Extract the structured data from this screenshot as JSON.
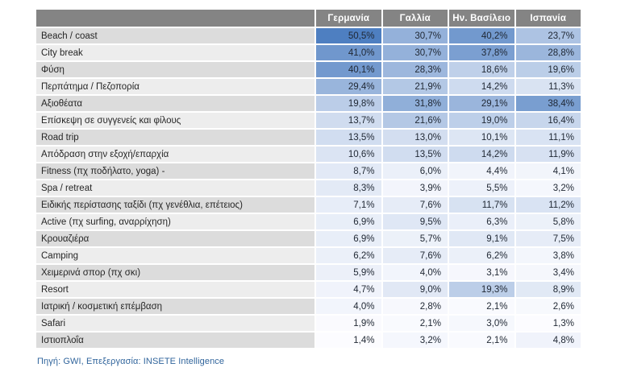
{
  "colors": {
    "header_bg": "#848484",
    "header_text": "#FFFFFF",
    "row_label_bg_dark": "#DCDCDC",
    "row_label_bg_light": "#EDEDED",
    "grid_line": "#FFFFFF",
    "label_text": "#262626",
    "value_text": "#1F2733",
    "source_text": "#31659C",
    "heat_min_color": "#FCFCFF",
    "heat_max_color": "#4E7FC1"
  },
  "chart_data": {
    "type": "table",
    "title": "",
    "corner_label": "",
    "columns": [
      "Γερμανία",
      "Γαλλία",
      "Ην. Βασίλειο",
      "Ισπανία"
    ],
    "value_suffix": "%",
    "decimal_separator": ",",
    "legend_note": "cell shading = blue heatmap scaled to value (min 1,3% white, max 50,5% blue)",
    "rows": [
      {
        "label": "Beach / coast",
        "values": [
          50.5,
          30.7,
          40.2,
          23.7
        ]
      },
      {
        "label": "City break",
        "values": [
          41.0,
          30.7,
          37.8,
          28.8
        ]
      },
      {
        "label": "Φύση",
        "values": [
          40.1,
          28.3,
          18.6,
          19.6
        ]
      },
      {
        "label": "Περπάτημα /  Πεζοπορία",
        "values": [
          29.4,
          21.9,
          14.2,
          11.3
        ]
      },
      {
        "label": "Αξιοθέατα",
        "values": [
          19.8,
          31.8,
          29.1,
          38.4
        ]
      },
      {
        "label": "Επίσκεψη σε συγγενείς και φίλους",
        "values": [
          13.7,
          21.6,
          19.0,
          16.4
        ]
      },
      {
        "label": "Road trip",
        "values": [
          13.5,
          13.0,
          10.1,
          11.1
        ]
      },
      {
        "label": "Απόδραση στην εξοχή/επαρχία",
        "values": [
          10.6,
          13.5,
          14.2,
          11.9
        ]
      },
      {
        "label": "Fitness (πχ ποδήλατο, yoga) -",
        "values": [
          8.7,
          6.0,
          4.4,
          4.1
        ]
      },
      {
        "label": "Spa / retreat",
        "values": [
          8.3,
          3.9,
          5.5,
          3.2
        ]
      },
      {
        "label": "Ειδικής περίστασης ταξίδι (πχ γενέθλια, επέτειος)",
        "values": [
          7.1,
          7.6,
          11.7,
          11.2
        ]
      },
      {
        "label": "Active (πχ surfing, αναρρίχηση)",
        "values": [
          6.9,
          9.5,
          6.3,
          5.8
        ]
      },
      {
        "label": "Κρουαζιέρα",
        "values": [
          6.9,
          5.7,
          9.1,
          7.5
        ]
      },
      {
        "label": "Camping",
        "values": [
          6.2,
          7.6,
          6.2,
          3.8
        ]
      },
      {
        "label": "Χειμερινά σπορ (πχ σκι)",
        "values": [
          5.9,
          4.0,
          3.1,
          3.4
        ]
      },
      {
        "label": "Resort",
        "values": [
          4.7,
          9.0,
          19.3,
          8.9
        ]
      },
      {
        "label": "Ιατρική / κοσμετική επέμβαση",
        "values": [
          4.0,
          2.8,
          2.1,
          2.6
        ]
      },
      {
        "label": "Safari",
        "values": [
          1.9,
          2.1,
          3.0,
          1.3
        ]
      },
      {
        "label": "Ιστιοπλοΐα",
        "values": [
          1.4,
          3.2,
          2.1,
          4.8
        ]
      }
    ]
  },
  "footer": {
    "source_note": "Πηγή: GWI, Επεξεργασία: INSETE Intelligence"
  }
}
